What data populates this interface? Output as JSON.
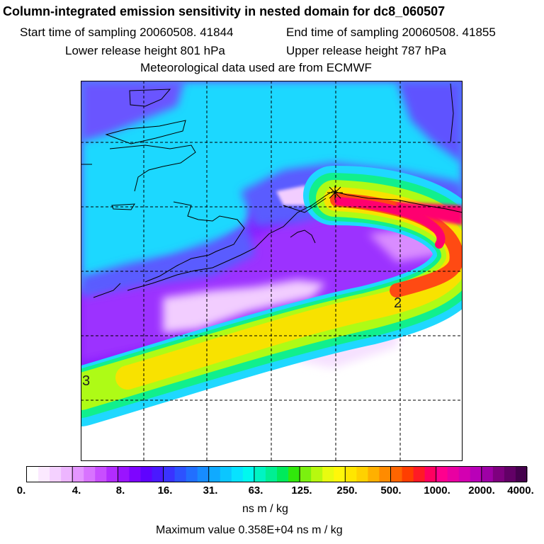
{
  "header": {
    "title": "Column-integrated emission sensitivity in nested domain for dc8_060507",
    "start_label": "Start time of sampling 20060508. 41844",
    "end_label": "End time of sampling 20060508. 41855",
    "lower_label": "Lower release height  801 hPa",
    "upper_label": "Upper release height  787 hPa",
    "met_label": "Meteorological data used are from ECMWF"
  },
  "map": {
    "contour_labels": [
      "2",
      "3"
    ],
    "colors": {
      "background_low": "#8a1dff",
      "very_low": "#f4d7ff",
      "low": "#d98cff",
      "medium_low": "#5a5cff",
      "medium": "#1fd8ff",
      "mid_high": "#11ef8d",
      "high": "#aefb16",
      "higher": "#f8e200",
      "very_high": "#ff4a13",
      "peak": "#ff006f"
    }
  },
  "colorbar": {
    "tick_labels": [
      "0.",
      "4.",
      "8.",
      "16.",
      "31.",
      "63.",
      "125.",
      "250.",
      "500.",
      "1000.",
      "2000.",
      "4000."
    ],
    "colors": [
      "#ffffff",
      "#fbe9ff",
      "#f4d1ff",
      "#edb5ff",
      "#e496ff",
      "#d873ff",
      "#c84eff",
      "#b22cff",
      "#9a14ff",
      "#7e05ff",
      "#5f03ff",
      "#4a19ff",
      "#3a33ff",
      "#2d52ff",
      "#216fff",
      "#178cff",
      "#10aaff",
      "#0bc6ff",
      "#07e2ff",
      "#00f8ef",
      "#00f4c3",
      "#00ef93",
      "#00ea5b",
      "#31e80b",
      "#7bf00f",
      "#b7f80f",
      "#e8fb10",
      "#fff70a",
      "#ffe600",
      "#ffd100",
      "#ffb000",
      "#ff8b00",
      "#ff6500",
      "#ff3e00",
      "#ff1a25",
      "#ff0060",
      "#ff008e",
      "#e900a2",
      "#d300b1",
      "#b900b8",
      "#9e00a6",
      "#7e007f",
      "#620066",
      "#45004d"
    ],
    "units": "ns m / kg",
    "max_value": "Maximum value  0.358E+04 ns m / kg"
  }
}
